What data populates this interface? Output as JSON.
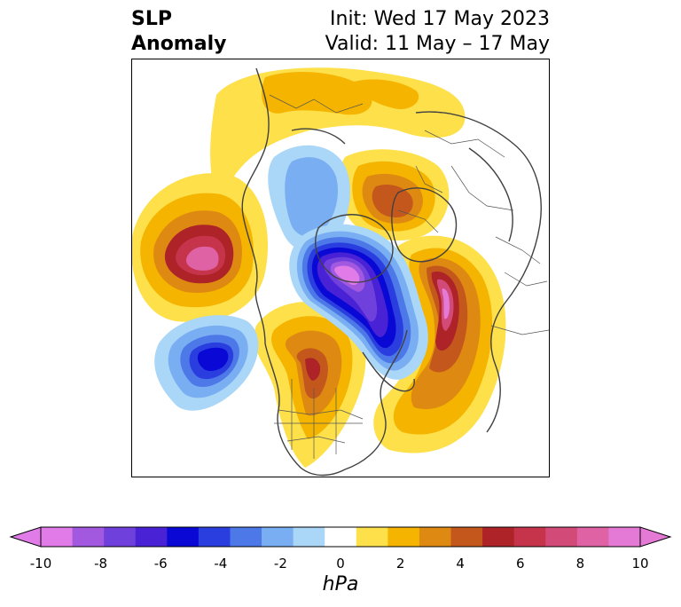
{
  "title": {
    "left_line1": "SLP",
    "left_line2": "Anomaly",
    "right_line1": "Init: Wed 17 May 2023",
    "right_line2": "Valid: 11 May – 17 May"
  },
  "colorbar": {
    "unit": "hPa",
    "ticks": [
      "-10",
      "-8",
      "-6",
      "-4",
      "-2",
      "0",
      "2",
      "4",
      "6",
      "8",
      "10"
    ],
    "levels": [
      -10,
      -9,
      -8,
      -7,
      -6,
      -5,
      -4,
      -3,
      -2,
      -1,
      1,
      2,
      3,
      4,
      5,
      6,
      7,
      8,
      9,
      10
    ],
    "colors": [
      "#e07be8",
      "#a259e0",
      "#7040dd",
      "#4a22d6",
      "#0a08d4",
      "#2a3ee0",
      "#4d78e8",
      "#7aaef2",
      "#aad6f7",
      "#ffffff",
      "#fde04a",
      "#f4b400",
      "#de8a12",
      "#c4581c",
      "#ad2327",
      "#c5344a",
      "#d24a78",
      "#de62a4",
      "#e47ad6"
    ],
    "extend": "both"
  },
  "map": {
    "projection": "north-polar-stereographic",
    "field": "SLP Anomaly",
    "icons": [
      "coastlines",
      "country-borders",
      "state-borders"
    ]
  }
}
